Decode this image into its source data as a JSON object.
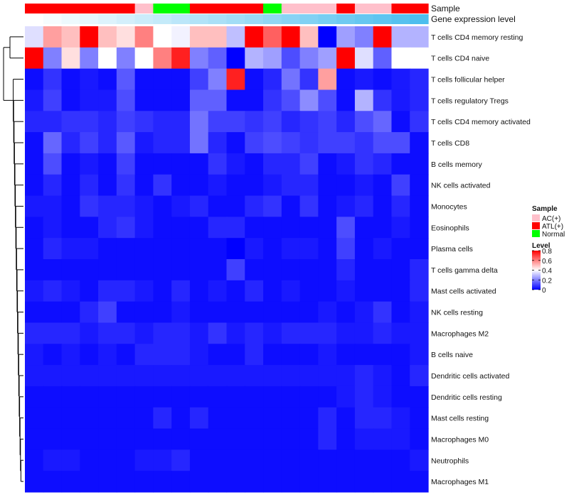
{
  "chart_data": {
    "type": "heatmap",
    "title": "",
    "annotation_labels": {
      "sample": "Sample",
      "gene": "Gene expression level"
    },
    "sample_groups": [
      "ATL(+)",
      "ATL(+)",
      "ATL(+)",
      "ATL(+)",
      "ATL(+)",
      "ATL(+)",
      "AC(+)",
      "Normal",
      "Normal",
      "ATL(+)",
      "ATL(+)",
      "ATL(+)",
      "ATL(+)",
      "Normal",
      "AC(+)",
      "AC(+)",
      "AC(+)",
      "ATL(+)",
      "AC(+)",
      "AC(+)",
      "ATL(+)",
      "ATL(+)"
    ],
    "gene_expression": [
      0.0,
      0.05,
      0.1,
      0.14,
      0.19,
      0.24,
      0.29,
      0.33,
      0.38,
      0.43,
      0.48,
      0.52,
      0.57,
      0.62,
      0.67,
      0.71,
      0.76,
      0.81,
      0.86,
      0.9,
      0.95,
      1.0
    ],
    "rows": [
      "T cells CD4 memory resting",
      "T cells CD4 naive",
      "T cells follicular helper",
      "T cells regulatory  Tregs",
      "T cells CD4 memory activated",
      "T cells CD8",
      "B cells memory",
      "NK cells activated",
      "Monocytes",
      "Eosinophils",
      "Plasma cells",
      "T cells gamma delta",
      "Mast cells activated",
      "NK cells resting",
      "Macrophages M2",
      "B cells naive",
      "Dendritic cells activated",
      "Dendritic cells resting",
      "Mast cells resting",
      "Macrophages M0",
      "Neutrophils",
      "Macrophages M1"
    ],
    "values": [
      [
        0.35,
        0.55,
        0.5,
        0.8,
        0.5,
        0.45,
        0.6,
        0.4,
        0.38,
        0.5,
        0.5,
        0.3,
        0.8,
        0.65,
        0.8,
        0.5,
        0.0,
        0.25,
        0.2,
        0.8,
        0.28,
        0.28
      ],
      [
        0.8,
        0.2,
        0.45,
        0.2,
        0.4,
        0.2,
        0.4,
        0.6,
        0.75,
        0.2,
        0.15,
        0.0,
        0.28,
        0.25,
        0.12,
        0.2,
        0.25,
        0.8,
        0.35,
        0.15,
        0.4,
        0.4
      ],
      [
        0.02,
        0.08,
        0.02,
        0.04,
        0.02,
        0.14,
        0.02,
        0.02,
        0.02,
        0.1,
        0.2,
        0.75,
        0.02,
        0.06,
        0.18,
        0.08,
        0.55,
        0.02,
        0.04,
        0.02,
        0.04,
        0.06
      ],
      [
        0.04,
        0.1,
        0.02,
        0.04,
        0.04,
        0.12,
        0.02,
        0.02,
        0.02,
        0.15,
        0.15,
        0.02,
        0.02,
        0.08,
        0.12,
        0.22,
        0.12,
        0.02,
        0.28,
        0.08,
        0.04,
        0.06
      ],
      [
        0.06,
        0.06,
        0.08,
        0.08,
        0.06,
        0.1,
        0.08,
        0.06,
        0.06,
        0.18,
        0.1,
        0.1,
        0.08,
        0.1,
        0.06,
        0.08,
        0.1,
        0.06,
        0.12,
        0.16,
        0.02,
        0.08
      ],
      [
        0.02,
        0.16,
        0.06,
        0.1,
        0.06,
        0.14,
        0.04,
        0.06,
        0.06,
        0.18,
        0.06,
        0.02,
        0.1,
        0.12,
        0.1,
        0.08,
        0.1,
        0.1,
        0.08,
        0.12,
        0.12,
        0.02
      ],
      [
        0.02,
        0.12,
        0.02,
        0.04,
        0.02,
        0.1,
        0.02,
        0.02,
        0.02,
        0.02,
        0.08,
        0.04,
        0.02,
        0.06,
        0.06,
        0.1,
        0.02,
        0.04,
        0.08,
        0.06,
        0.02,
        0.02
      ],
      [
        0.02,
        0.06,
        0.02,
        0.06,
        0.02,
        0.08,
        0.02,
        0.08,
        0.02,
        0.02,
        0.04,
        0.02,
        0.02,
        0.04,
        0.06,
        0.06,
        0.02,
        0.02,
        0.04,
        0.02,
        0.1,
        0.02
      ],
      [
        0.04,
        0.04,
        0.02,
        0.08,
        0.06,
        0.06,
        0.04,
        0.02,
        0.04,
        0.06,
        0.02,
        0.02,
        0.06,
        0.08,
        0.02,
        0.08,
        0.02,
        0.04,
        0.06,
        0.02,
        0.06,
        0.02
      ],
      [
        0.02,
        0.04,
        0.02,
        0.02,
        0.06,
        0.08,
        0.04,
        0.02,
        0.02,
        0.02,
        0.06,
        0.06,
        0.02,
        0.02,
        0.02,
        0.02,
        0.02,
        0.12,
        0.02,
        0.02,
        0.04,
        0.02
      ],
      [
        0.02,
        0.06,
        0.04,
        0.04,
        0.02,
        0.02,
        0.02,
        0.02,
        0.02,
        0.02,
        0.02,
        0.0,
        0.04,
        0.02,
        0.04,
        0.04,
        0.02,
        0.1,
        0.02,
        0.04,
        0.02,
        0.02
      ],
      [
        0.02,
        0.02,
        0.02,
        0.02,
        0.02,
        0.02,
        0.02,
        0.02,
        0.02,
        0.02,
        0.02,
        0.1,
        0.02,
        0.02,
        0.02,
        0.02,
        0.02,
        0.06,
        0.02,
        0.02,
        0.02,
        0.06
      ],
      [
        0.04,
        0.06,
        0.04,
        0.02,
        0.06,
        0.06,
        0.04,
        0.02,
        0.06,
        0.02,
        0.04,
        0.02,
        0.06,
        0.02,
        0.04,
        0.02,
        0.02,
        0.04,
        0.02,
        0.02,
        0.02,
        0.06
      ],
      [
        0.02,
        0.02,
        0.02,
        0.06,
        0.1,
        0.02,
        0.02,
        0.02,
        0.04,
        0.02,
        0.02,
        0.02,
        0.02,
        0.02,
        0.02,
        0.02,
        0.04,
        0.02,
        0.04,
        0.08,
        0.02,
        0.04
      ],
      [
        0.06,
        0.06,
        0.06,
        0.04,
        0.06,
        0.06,
        0.04,
        0.06,
        0.06,
        0.04,
        0.08,
        0.04,
        0.06,
        0.04,
        0.06,
        0.06,
        0.06,
        0.04,
        0.04,
        0.06,
        0.04,
        0.04
      ],
      [
        0.04,
        0.02,
        0.04,
        0.02,
        0.04,
        0.02,
        0.06,
        0.06,
        0.06,
        0.04,
        0.02,
        0.02,
        0.06,
        0.02,
        0.02,
        0.02,
        0.04,
        0.02,
        0.02,
        0.02,
        0.02,
        0.04
      ],
      [
        0.04,
        0.04,
        0.04,
        0.04,
        0.04,
        0.04,
        0.04,
        0.04,
        0.04,
        0.04,
        0.04,
        0.04,
        0.04,
        0.04,
        0.04,
        0.04,
        0.04,
        0.04,
        0.06,
        0.04,
        0.02,
        0.06
      ],
      [
        0.02,
        0.02,
        0.02,
        0.02,
        0.02,
        0.02,
        0.02,
        0.02,
        0.02,
        0.02,
        0.02,
        0.02,
        0.02,
        0.02,
        0.02,
        0.02,
        0.02,
        0.04,
        0.06,
        0.04,
        0.02,
        0.02
      ],
      [
        0.02,
        0.02,
        0.02,
        0.02,
        0.02,
        0.02,
        0.02,
        0.06,
        0.02,
        0.06,
        0.02,
        0.02,
        0.02,
        0.02,
        0.02,
        0.02,
        0.06,
        0.02,
        0.06,
        0.06,
        0.04,
        0.02
      ],
      [
        0.02,
        0.02,
        0.02,
        0.02,
        0.02,
        0.02,
        0.02,
        0.02,
        0.02,
        0.02,
        0.02,
        0.02,
        0.02,
        0.02,
        0.02,
        0.02,
        0.06,
        0.02,
        0.04,
        0.04,
        0.04,
        0.02
      ],
      [
        0.02,
        0.04,
        0.04,
        0.02,
        0.02,
        0.02,
        0.04,
        0.04,
        0.06,
        0.02,
        0.02,
        0.02,
        0.02,
        0.02,
        0.02,
        0.02,
        0.02,
        0.02,
        0.02,
        0.02,
        0.02,
        0.04
      ],
      [
        0.02,
        0.02,
        0.02,
        0.02,
        0.02,
        0.02,
        0.02,
        0.02,
        0.02,
        0.02,
        0.02,
        0.02,
        0.02,
        0.02,
        0.02,
        0.02,
        0.02,
        0.02,
        0.02,
        0.02,
        0.02,
        0.02
      ]
    ],
    "color_scale": {
      "min": 0,
      "max": 0.8,
      "colors": [
        "#0000ff",
        "#ffffff",
        "#ff0000"
      ]
    },
    "legend": {
      "sample_title": "Sample",
      "sample_items": [
        {
          "label": "AC(+)",
          "color": "#ffc0cb"
        },
        {
          "label": "ATL(+)",
          "color": "#ff0000"
        },
        {
          "label": "Normal",
          "color": "#00ff00"
        }
      ],
      "level_title": "Level",
      "level_ticks": [
        0.8,
        0.6,
        0.4,
        0.2,
        0
      ]
    }
  }
}
